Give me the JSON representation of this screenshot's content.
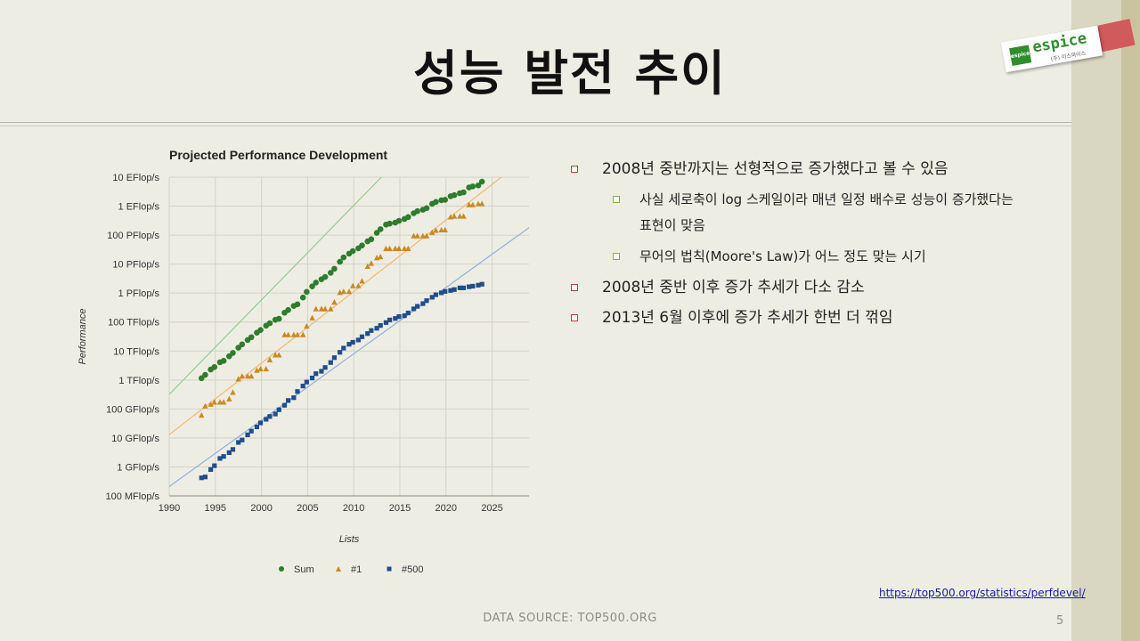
{
  "slide": {
    "title": "성능 발전 추이",
    "page_number": "5",
    "footer": "DATA SOURCE: TOP500.ORG",
    "source_link": "https://top500.org/statistics/perfdevel/"
  },
  "logo": {
    "text": "espice",
    "badge": "espice",
    "sub": "(주) 이스파이스"
  },
  "bullets": [
    {
      "level": 1,
      "text": "2008년 중반까지는 선형적으로 증가했다고 볼 수 있음"
    },
    {
      "level": 2,
      "text": "사실 세로축이 log 스케일이라 매년 일정 배수로 성능이 증가했다는 표현이 맞음"
    },
    {
      "level": 2,
      "text": "무어의 법칙(Moore's Law)가 어느 정도 맞는 시기"
    },
    {
      "level": 1,
      "text": "2008년 중반 이후 증가 추세가 다소 감소"
    },
    {
      "level": 1,
      "text": "2013년 6월 이후에 증가 추세가 한번 더 꺾임"
    }
  ],
  "colors": {
    "sum": "#2e7d2e",
    "top1": "#cc8822",
    "top500": "#1f4e8c",
    "sum_trend": "#8fcf8f",
    "top1_trend": "#f0b870",
    "top500_trend": "#8fb0dd",
    "bullet_l1": "#c23b3b",
    "bullet_l2": "#8ab04f"
  },
  "chart_data": {
    "type": "scatter",
    "title": "Projected Performance Development",
    "xlabel": "Lists",
    "ylabel": "Performance",
    "y_scale": "log",
    "xlim": [
      1990,
      2029
    ],
    "x_ticks": [
      1990,
      1995,
      2000,
      2005,
      2010,
      2015,
      2020,
      2025
    ],
    "y_ticks": [
      {
        "value": 100000000.0,
        "label": "100 MFlop/s"
      },
      {
        "value": 1000000000.0,
        "label": "1 GFlop/s"
      },
      {
        "value": 10000000000.0,
        "label": "10 GFlop/s"
      },
      {
        "value": 100000000000.0,
        "label": "100 GFlop/s"
      },
      {
        "value": 1000000000000.0,
        "label": "1 TFlop/s"
      },
      {
        "value": 10000000000000.0,
        "label": "10 TFlop/s"
      },
      {
        "value": 100000000000000.0,
        "label": "100 TFlop/s"
      },
      {
        "value": 1000000000000000.0,
        "label": "1 PFlop/s"
      },
      {
        "value": 1e+16,
        "label": "10 PFlop/s"
      },
      {
        "value": 1e+17,
        "label": "100 PFlop/s"
      },
      {
        "value": 1e+18,
        "label": "1 EFlop/s"
      },
      {
        "value": 1e+19,
        "label": "10 EFlop/s"
      }
    ],
    "grid": true,
    "legend_position": "bottom",
    "series": [
      {
        "name": "Sum",
        "marker": "circle",
        "trend": [
          [
            1990,
            320000000000.0
          ],
          [
            2013.0,
            1e+19
          ]
        ],
        "points": [
          [
            1993.5,
            1150000000000.0
          ],
          [
            1993.9,
            1500000000000.0
          ],
          [
            1994.5,
            2300000000000.0
          ],
          [
            1994.9,
            2800000000000.0
          ],
          [
            1995.5,
            4100000000000.0
          ],
          [
            1995.9,
            4600000000000.0
          ],
          [
            1996.5,
            6600000000000.0
          ],
          [
            1996.9,
            8600000000000.0
          ],
          [
            1997.5,
            13000000000000.0
          ],
          [
            1997.9,
            17000000000000.0
          ],
          [
            1998.5,
            24000000000000.0
          ],
          [
            1998.9,
            30000000000000.0
          ],
          [
            1999.5,
            43000000000000.0
          ],
          [
            1999.9,
            53000000000000.0
          ],
          [
            2000.5,
            75000000000000.0
          ],
          [
            2000.9,
            91000000000000.0
          ],
          [
            2001.5,
            120000000000000.0
          ],
          [
            2001.9,
            130000000000000.0
          ],
          [
            2002.5,
            210000000000000.0
          ],
          [
            2002.9,
            260000000000000.0
          ],
          [
            2003.5,
            360000000000000.0
          ],
          [
            2003.9,
            410000000000000.0
          ],
          [
            2004.5,
            700000000000000.0
          ],
          [
            2004.9,
            1100000000000000.0
          ],
          [
            2005.5,
            1700000000000000.0
          ],
          [
            2005.9,
            2300000000000000.0
          ],
          [
            2006.5,
            3000000000000000.0
          ],
          [
            2006.9,
            3600000000000000.0
          ],
          [
            2007.5,
            5000000000000000.0
          ],
          [
            2007.9,
            6900000000000000.0
          ],
          [
            2008.5,
            1.2e+16
          ],
          [
            2008.9,
            1.7e+16
          ],
          [
            2009.5,
            2.3e+16
          ],
          [
            2009.9,
            2.8e+16
          ],
          [
            2010.5,
            3.5e+16
          ],
          [
            2010.9,
            4.4e+16
          ],
          [
            2011.5,
            6.1e+16
          ],
          [
            2011.9,
            7.2e+16
          ],
          [
            2012.5,
            1.2e+17
          ],
          [
            2012.9,
            1.6e+17
          ],
          [
            2013.5,
            2.3e+17
          ],
          [
            2013.9,
            2.5e+17
          ],
          [
            2014.5,
            2.7e+17
          ],
          [
            2014.9,
            3.1e+17
          ],
          [
            2015.5,
            3.6e+17
          ],
          [
            2015.9,
            4.2e+17
          ],
          [
            2016.5,
            5.7e+17
          ],
          [
            2016.9,
            6.7e+17
          ],
          [
            2017.5,
            7.5e+17
          ],
          [
            2017.9,
            8.5e+17
          ],
          [
            2018.5,
            1.2e+18
          ],
          [
            2018.9,
            1.4e+18
          ],
          [
            2019.5,
            1.6e+18
          ],
          [
            2019.9,
            1.65e+18
          ],
          [
            2020.5,
            2.2e+18
          ],
          [
            2020.9,
            2.4e+18
          ],
          [
            2021.5,
            2.8e+18
          ],
          [
            2021.9,
            3e+18
          ],
          [
            2022.5,
            4.4e+18
          ],
          [
            2022.9,
            4.8e+18
          ],
          [
            2023.5,
            5.2e+18
          ],
          [
            2023.9,
            7e+18
          ]
        ]
      },
      {
        "name": "#1",
        "marker": "triangle",
        "trend": [
          [
            1990,
            13000000000.0
          ],
          [
            2026.0,
            1e+19
          ]
        ],
        "points": [
          [
            1993.5,
            60000000000.0
          ],
          [
            1993.9,
            124000000000.0
          ],
          [
            1994.5,
            143000000000.0
          ],
          [
            1994.9,
            170000000000.0
          ],
          [
            1995.5,
            170000000000.0
          ],
          [
            1995.9,
            170000000000.0
          ],
          [
            1996.5,
            220000000000.0
          ],
          [
            1996.9,
            370000000000.0
          ],
          [
            1997.5,
            1070000000000.0
          ],
          [
            1997.9,
            1340000000000.0
          ],
          [
            1998.5,
            1340000000000.0
          ],
          [
            1998.9,
            1340000000000.0
          ],
          [
            1999.5,
            2120000000000.0
          ],
          [
            1999.9,
            2380000000000.0
          ],
          [
            2000.5,
            2380000000000.0
          ],
          [
            2000.9,
            4900000000000.0
          ],
          [
            2001.5,
            7200000000000.0
          ],
          [
            2001.9,
            7200000000000.0
          ],
          [
            2002.5,
            35900000000000.0
          ],
          [
            2002.9,
            35900000000000.0
          ],
          [
            2003.5,
            35900000000000.0
          ],
          [
            2003.9,
            35900000000000.0
          ],
          [
            2004.5,
            35900000000000.0
          ],
          [
            2004.9,
            71000000000000.0
          ],
          [
            2005.5,
            137000000000000.0
          ],
          [
            2005.9,
            281000000000000.0
          ],
          [
            2006.5,
            281000000000000.0
          ],
          [
            2006.9,
            281000000000000.0
          ],
          [
            2007.5,
            281000000000000.0
          ],
          [
            2007.9,
            478000000000000.0
          ],
          [
            2008.5,
            1030000000000000.0
          ],
          [
            2008.9,
            1110000000000000.0
          ],
          [
            2009.5,
            1110000000000000.0
          ],
          [
            2009.9,
            1760000000000000.0
          ],
          [
            2010.5,
            1760000000000000.0
          ],
          [
            2010.9,
            2570000000000000.0
          ],
          [
            2011.5,
            8200000000000000.0
          ],
          [
            2011.9,
            1.05e+16
          ],
          [
            2012.5,
            1.63e+16
          ],
          [
            2012.9,
            1.76e+16
          ],
          [
            2013.5,
            3.39e+16
          ],
          [
            2013.9,
            3.39e+16
          ],
          [
            2014.5,
            3.39e+16
          ],
          [
            2014.9,
            3.39e+16
          ],
          [
            2015.5,
            3.39e+16
          ],
          [
            2015.9,
            3.39e+16
          ],
          [
            2016.5,
            9.3e+16
          ],
          [
            2016.9,
            9.3e+16
          ],
          [
            2017.5,
            9.3e+16
          ],
          [
            2017.9,
            9.3e+16
          ],
          [
            2018.5,
            1.22e+17
          ],
          [
            2018.9,
            1.44e+17
          ],
          [
            2019.5,
            1.49e+17
          ],
          [
            2019.9,
            1.49e+17
          ],
          [
            2020.5,
            4.16e+17
          ],
          [
            2020.9,
            4.42e+17
          ],
          [
            2021.5,
            4.42e+17
          ],
          [
            2021.9,
            4.42e+17
          ],
          [
            2022.5,
            1.1e+18
          ],
          [
            2022.9,
            1.1e+18
          ],
          [
            2023.5,
            1.19e+18
          ],
          [
            2023.9,
            1.19e+18
          ]
        ]
      },
      {
        "name": "#500",
        "marker": "square",
        "trend": [
          [
            1990,
            210000000.0
          ],
          [
            2029.0,
            1.8e+17
          ]
        ],
        "points": [
          [
            1993.5,
            420000000.0
          ],
          [
            1993.9,
            450000000.0
          ],
          [
            1994.5,
            810000000.0
          ],
          [
            1994.9,
            1100000000.0
          ],
          [
            1995.5,
            1960000000.0
          ],
          [
            1995.9,
            2300000000.0
          ],
          [
            1996.5,
            3100000000.0
          ],
          [
            1996.9,
            4000000000.0
          ],
          [
            1997.5,
            7000000000.0
          ],
          [
            1997.9,
            8500000000.0
          ],
          [
            1998.5,
            12800000000.0
          ],
          [
            1998.9,
            17200000000.0
          ],
          [
            1999.5,
            24000000000.0
          ],
          [
            1999.9,
            33000000000.0
          ],
          [
            2000.5,
            44000000000.0
          ],
          [
            2000.9,
            55000000000.0
          ],
          [
            2001.5,
            67000000000.0
          ],
          [
            2001.9,
            94000000000.0
          ],
          [
            2002.5,
            134000000000.0
          ],
          [
            2002.9,
            196000000000.0
          ],
          [
            2003.5,
            245000000000.0
          ],
          [
            2003.9,
            400000000000.0
          ],
          [
            2004.5,
            620000000000.0
          ],
          [
            2004.9,
            850000000000.0
          ],
          [
            2005.5,
            1170000000000.0
          ],
          [
            2005.9,
            1650000000000.0
          ],
          [
            2006.5,
            2000000000000.0
          ],
          [
            2006.9,
            2700000000000.0
          ],
          [
            2007.5,
            4000000000000.0
          ],
          [
            2007.9,
            5900000000000.0
          ],
          [
            2008.5,
            9000000000000.0
          ],
          [
            2008.9,
            12600000000000.0
          ],
          [
            2009.5,
            17100000000000.0
          ],
          [
            2009.9,
            20000000000000.0
          ],
          [
            2010.5,
            24000000000000.0
          ],
          [
            2010.9,
            31000000000000.0
          ],
          [
            2011.5,
            40000000000000.0
          ],
          [
            2011.9,
            51000000000000.0
          ],
          [
            2012.5,
            61000000000000.0
          ],
          [
            2012.9,
            76000000000000.0
          ],
          [
            2013.5,
            96000000000000.0
          ],
          [
            2013.9,
            118000000000000.0
          ],
          [
            2014.5,
            133000000000000.0
          ],
          [
            2014.9,
            154000000000000.0
          ],
          [
            2015.5,
            165000000000000.0
          ],
          [
            2015.9,
            206000000000000.0
          ],
          [
            2016.5,
            286000000000000.0
          ],
          [
            2016.9,
            349000000000000.0
          ],
          [
            2017.5,
            432000000000000.0
          ],
          [
            2017.9,
            549000000000000.0
          ],
          [
            2018.5,
            716000000000000.0
          ],
          [
            2018.9,
            874000000000000.0
          ],
          [
            2019.5,
            1020000000000000.0
          ],
          [
            2019.9,
            1140000000000000.0
          ],
          [
            2020.5,
            1230000000000000.0
          ],
          [
            2020.9,
            1320000000000000.0
          ],
          [
            2021.5,
            1510000000000000.0
          ],
          [
            2021.9,
            1510000000000000.0
          ],
          [
            2022.5,
            1650000000000000.0
          ],
          [
            2022.9,
            1730000000000000.0
          ],
          [
            2023.5,
            1870000000000000.0
          ],
          [
            2023.9,
            2020000000000000.0
          ]
        ]
      }
    ]
  }
}
